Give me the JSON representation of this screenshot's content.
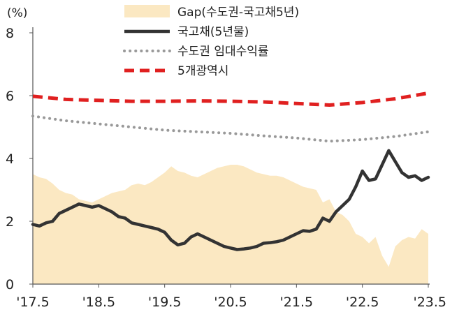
{
  "chart_data": {
    "type": "line",
    "unit": "(%)",
    "ylim": [
      0,
      8
    ],
    "yticks": [
      0,
      2,
      4,
      6,
      8
    ],
    "xlim": [
      2017.5,
      2023.5
    ],
    "xticks": [
      {
        "value": 2017.5,
        "label": "'17.5"
      },
      {
        "value": 2018.5,
        "label": "'18.5"
      },
      {
        "value": 2019.5,
        "label": "'19.5"
      },
      {
        "value": 2020.5,
        "label": "'20.5"
      },
      {
        "value": 2021.5,
        "label": "'21.5"
      },
      {
        "value": 2022.5,
        "label": "'22.5"
      },
      {
        "value": 2023.5,
        "label": "'23.5"
      }
    ],
    "grid": false,
    "legend": "top-center",
    "series": [
      {
        "name": "Gap(수도권-국고채5년)",
        "kind": "area",
        "color": "#fbe8c2",
        "x": [
          2017.5,
          2017.6,
          2017.7,
          2017.8,
          2017.9,
          2018.0,
          2018.1,
          2018.2,
          2018.3,
          2018.4,
          2018.5,
          2018.6,
          2018.7,
          2018.8,
          2018.9,
          2019.0,
          2019.1,
          2019.2,
          2019.3,
          2019.4,
          2019.5,
          2019.6,
          2019.7,
          2019.8,
          2019.9,
          2020.0,
          2020.1,
          2020.2,
          2020.3,
          2020.4,
          2020.5,
          2020.6,
          2020.7,
          2020.8,
          2020.9,
          2021.0,
          2021.1,
          2021.2,
          2021.3,
          2021.4,
          2021.5,
          2021.6,
          2021.7,
          2021.8,
          2021.9,
          2022.0,
          2022.1,
          2022.2,
          2022.3,
          2022.4,
          2022.5,
          2022.6,
          2022.7,
          2022.8,
          2022.9,
          2023.0,
          2023.1,
          2023.2,
          2023.3,
          2023.4,
          2023.5
        ],
        "values": [
          3.5,
          3.4,
          3.35,
          3.2,
          3.0,
          2.9,
          2.85,
          2.7,
          2.65,
          2.6,
          2.7,
          2.8,
          2.9,
          2.95,
          3.0,
          3.15,
          3.2,
          3.15,
          3.25,
          3.4,
          3.55,
          3.75,
          3.6,
          3.55,
          3.45,
          3.4,
          3.5,
          3.6,
          3.7,
          3.75,
          3.8,
          3.8,
          3.75,
          3.65,
          3.55,
          3.5,
          3.45,
          3.45,
          3.4,
          3.3,
          3.2,
          3.1,
          3.05,
          3.0,
          2.6,
          2.7,
          2.3,
          2.2,
          2.0,
          1.6,
          1.5,
          1.3,
          1.5,
          0.9,
          0.55,
          1.2,
          1.4,
          1.5,
          1.45,
          1.75,
          1.6
        ]
      },
      {
        "name": "국고채(5년물)",
        "kind": "line",
        "style": "solid",
        "color": "#333333",
        "x": [
          2017.5,
          2017.6,
          2017.7,
          2017.8,
          2017.9,
          2018.0,
          2018.1,
          2018.2,
          2018.3,
          2018.4,
          2018.5,
          2018.6,
          2018.7,
          2018.8,
          2018.9,
          2019.0,
          2019.1,
          2019.2,
          2019.3,
          2019.4,
          2019.5,
          2019.6,
          2019.7,
          2019.8,
          2019.9,
          2020.0,
          2020.1,
          2020.2,
          2020.3,
          2020.4,
          2020.5,
          2020.6,
          2020.7,
          2020.8,
          2020.9,
          2021.0,
          2021.1,
          2021.2,
          2021.3,
          2021.4,
          2021.5,
          2021.6,
          2021.7,
          2021.8,
          2021.9,
          2022.0,
          2022.1,
          2022.2,
          2022.3,
          2022.4,
          2022.5,
          2022.6,
          2022.7,
          2022.8,
          2022.9,
          2023.0,
          2023.1,
          2023.2,
          2023.3,
          2023.4,
          2023.5
        ],
        "values": [
          1.9,
          1.85,
          1.95,
          2.0,
          2.25,
          2.35,
          2.45,
          2.55,
          2.5,
          2.45,
          2.5,
          2.4,
          2.3,
          2.15,
          2.1,
          1.95,
          1.9,
          1.85,
          1.8,
          1.75,
          1.65,
          1.4,
          1.25,
          1.3,
          1.5,
          1.6,
          1.5,
          1.4,
          1.3,
          1.2,
          1.15,
          1.1,
          1.12,
          1.15,
          1.2,
          1.3,
          1.32,
          1.35,
          1.4,
          1.5,
          1.6,
          1.7,
          1.68,
          1.75,
          2.1,
          2.0,
          2.3,
          2.5,
          2.7,
          3.1,
          3.6,
          3.3,
          3.35,
          3.8,
          4.25,
          3.9,
          3.55,
          3.4,
          3.45,
          3.3,
          3.4
        ]
      },
      {
        "name": "수도권 임대수익률",
        "kind": "line",
        "style": "dotted",
        "color": "#999999",
        "x": [
          2017.5,
          2018.0,
          2018.5,
          2019.0,
          2019.5,
          2020.0,
          2020.5,
          2021.0,
          2021.5,
          2022.0,
          2022.5,
          2023.0,
          2023.5
        ],
        "values": [
          5.35,
          5.2,
          5.1,
          5.0,
          4.9,
          4.85,
          4.8,
          4.72,
          4.65,
          4.55,
          4.6,
          4.7,
          4.85
        ]
      },
      {
        "name": "5개광역시",
        "kind": "line",
        "style": "dashed",
        "color": "#e02020",
        "x": [
          2017.5,
          2018.0,
          2018.5,
          2019.0,
          2019.5,
          2020.0,
          2020.5,
          2021.0,
          2021.5,
          2022.0,
          2022.5,
          2023.0,
          2023.5
        ],
        "values": [
          5.98,
          5.88,
          5.85,
          5.82,
          5.82,
          5.83,
          5.82,
          5.8,
          5.75,
          5.7,
          5.78,
          5.9,
          6.08
        ]
      }
    ]
  }
}
